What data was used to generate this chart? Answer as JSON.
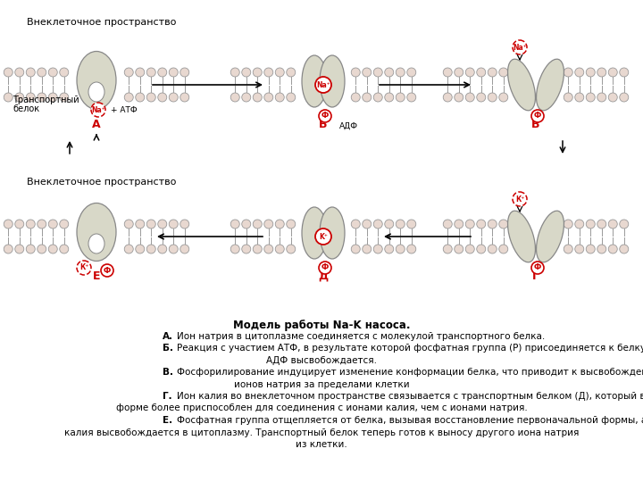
{
  "title_bold": "Модель работы Na-K насоса.",
  "line_A": " Ион натрия в цитоплазме соединяется с молекулой транспортного белка.",
  "line_B": " Реакция с участием АТФ, в результате которой фосфатная группа (Р) присоединяется к белку, а",
  "line_B2": "АДФ высвобождается.",
  "line_V": " Фосфорилирование индуцирует изменение конформации белка, что приводит к высвобождению",
  "line_V2": "ионов натрия за пределами клетки",
  "line_G": " Ион калия во внеклеточном пространстве связывается с транспортным белком (Д), который в этой",
  "line_G2": "форме более приспособлен для соединения с ионами калия, чем с ионами натрия.",
  "line_E": " Фосфатная группа отщепляется от белка, вызывая восстановление первоначальной формы, а ион",
  "line_E2": "калия высвобождается в цитоплазму. Транспортный белок теперь готов к выносу другого иона натрия",
  "line_E3": "из клетки.",
  "label_extracell_top": "Внеклеточное пространство",
  "label_extracell_bottom": "Внеклеточное пространство",
  "label_transport": "Транспортный",
  "label_belok": "белок",
  "bg_color": "#ffffff",
  "membrane_color": "#e8d8d0",
  "membrane_ec": "#999999",
  "protein_color": "#d8d8c8",
  "ion_color": "#cc0000",
  "arrow_color": "#000000",
  "text_color": "#000000"
}
